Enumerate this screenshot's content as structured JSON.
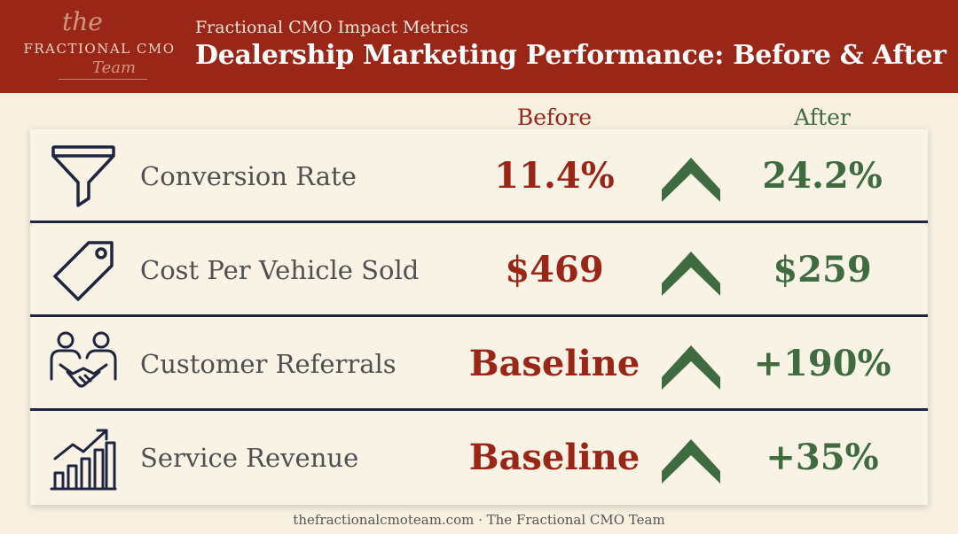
{
  "logo": {
    "the": "the",
    "name": "FRACTIONAL CMO",
    "team": "Team"
  },
  "header": {
    "subtitle": "Fractional CMO Impact Metrics",
    "title": "Dealership Marketing Performance: Before & After"
  },
  "columns": {
    "before": "Before",
    "after": "After"
  },
  "metrics": [
    {
      "label": "Conversion Rate",
      "before": "11.4%",
      "after": "24.2%",
      "icon": "funnel-icon"
    },
    {
      "label": "Cost Per Vehicle Sold",
      "before": "$469",
      "after": "$259",
      "icon": "price-tag-icon"
    },
    {
      "label": "Customer Referrals",
      "before": "Baseline",
      "after": "+190%",
      "icon": "handshake-people-icon"
    },
    {
      "label": "Service Revenue",
      "before": "Baseline",
      "after": "+35%",
      "icon": "growth-chart-icon"
    }
  ],
  "colors": {
    "header_bg": "#9a2617",
    "before": "#9a2617",
    "after": "#3e6b40",
    "icon_stroke": "#1f2540",
    "background": "#f7f0e1"
  },
  "footer": "thefractionalcmoteam.com · The Fractional CMO Team"
}
